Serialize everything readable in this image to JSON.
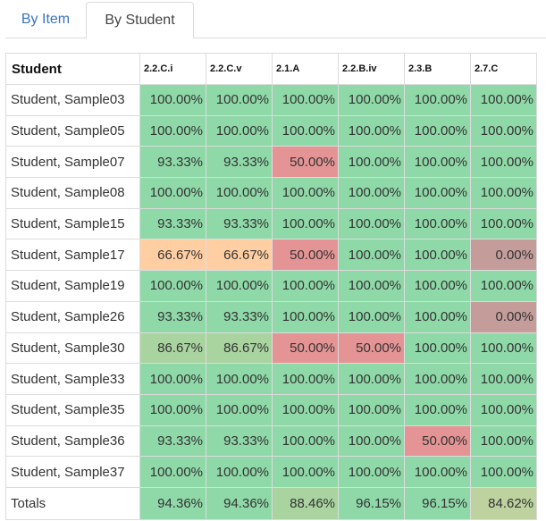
{
  "tabs": [
    {
      "label": "By Item",
      "active": false
    },
    {
      "label": "By Student",
      "active": true
    }
  ],
  "table": {
    "columns": [
      "Student",
      "2.2.C.i",
      "2.2.C.v",
      "2.1.A",
      "2.2.B.iv",
      "2.3.B",
      "2.7.C"
    ],
    "rows": [
      {
        "name": "Student, Sample03",
        "values": [
          "100.00%",
          "100.00%",
          "100.00%",
          "100.00%",
          "100.00%",
          "100.00%"
        ]
      },
      {
        "name": "Student, Sample05",
        "values": [
          "100.00%",
          "100.00%",
          "100.00%",
          "100.00%",
          "100.00%",
          "100.00%"
        ]
      },
      {
        "name": "Student, Sample07",
        "values": [
          "93.33%",
          "93.33%",
          "50.00%",
          "100.00%",
          "100.00%",
          "100.00%"
        ]
      },
      {
        "name": "Student, Sample08",
        "values": [
          "100.00%",
          "100.00%",
          "100.00%",
          "100.00%",
          "100.00%",
          "100.00%"
        ]
      },
      {
        "name": "Student, Sample15",
        "values": [
          "93.33%",
          "93.33%",
          "100.00%",
          "100.00%",
          "100.00%",
          "100.00%"
        ]
      },
      {
        "name": "Student, Sample17",
        "values": [
          "66.67%",
          "66.67%",
          "50.00%",
          "100.00%",
          "100.00%",
          "0.00%"
        ]
      },
      {
        "name": "Student, Sample19",
        "values": [
          "100.00%",
          "100.00%",
          "100.00%",
          "100.00%",
          "100.00%",
          "100.00%"
        ]
      },
      {
        "name": "Student, Sample26",
        "values": [
          "93.33%",
          "93.33%",
          "100.00%",
          "100.00%",
          "100.00%",
          "0.00%"
        ]
      },
      {
        "name": "Student, Sample30",
        "values": [
          "86.67%",
          "86.67%",
          "50.00%",
          "50.00%",
          "100.00%",
          "100.00%"
        ]
      },
      {
        "name": "Student, Sample33",
        "values": [
          "100.00%",
          "100.00%",
          "100.00%",
          "100.00%",
          "100.00%",
          "100.00%"
        ]
      },
      {
        "name": "Student, Sample35",
        "values": [
          "100.00%",
          "100.00%",
          "100.00%",
          "100.00%",
          "100.00%",
          "100.00%"
        ]
      },
      {
        "name": "Student, Sample36",
        "values": [
          "93.33%",
          "93.33%",
          "100.00%",
          "100.00%",
          "50.00%",
          "100.00%"
        ]
      },
      {
        "name": "Student, Sample37",
        "values": [
          "100.00%",
          "100.00%",
          "100.00%",
          "100.00%",
          "100.00%",
          "100.00%"
        ]
      }
    ],
    "totals": {
      "label": "Totals",
      "values": [
        "94.36%",
        "94.36%",
        "88.46%",
        "96.15%",
        "96.15%",
        "84.62%"
      ]
    }
  },
  "colors": {
    "high": "#8fd9a8",
    "good": "#a9d4a0",
    "mid": "#bdd29e",
    "medium": "#ffcfa3",
    "low": "#e49494",
    "zero": "#c49d9b",
    "none": "#ffffff"
  }
}
